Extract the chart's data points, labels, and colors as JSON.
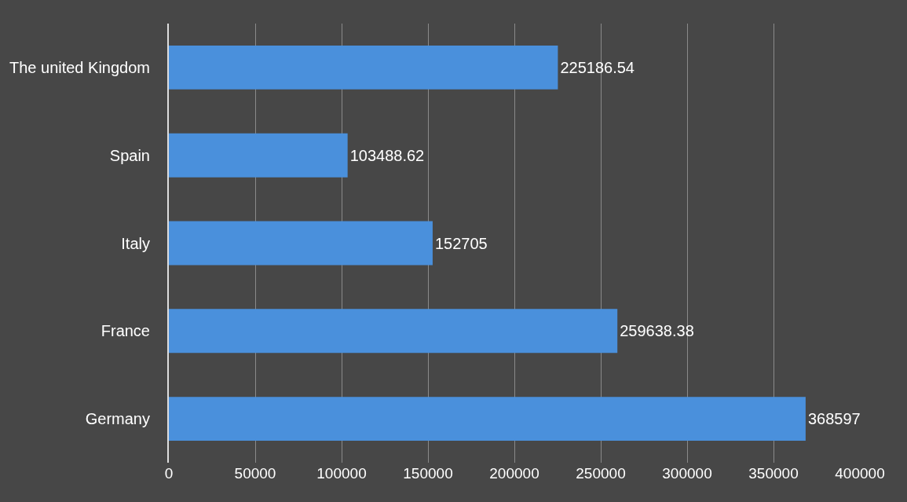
{
  "chart_data": {
    "type": "bar",
    "orientation": "horizontal",
    "categories": [
      "The united Kingdom",
      "Spain",
      "Italy",
      "France",
      "Germany"
    ],
    "values": [
      225186.54,
      103488.62,
      152705,
      259638.38,
      368597
    ],
    "color": "#4a90dc",
    "xlim": [
      0,
      400000
    ],
    "xticks": [
      0,
      50000,
      100000,
      150000,
      200000,
      250000,
      300000,
      350000,
      400000
    ],
    "grid": "x",
    "data_labels": true
  }
}
